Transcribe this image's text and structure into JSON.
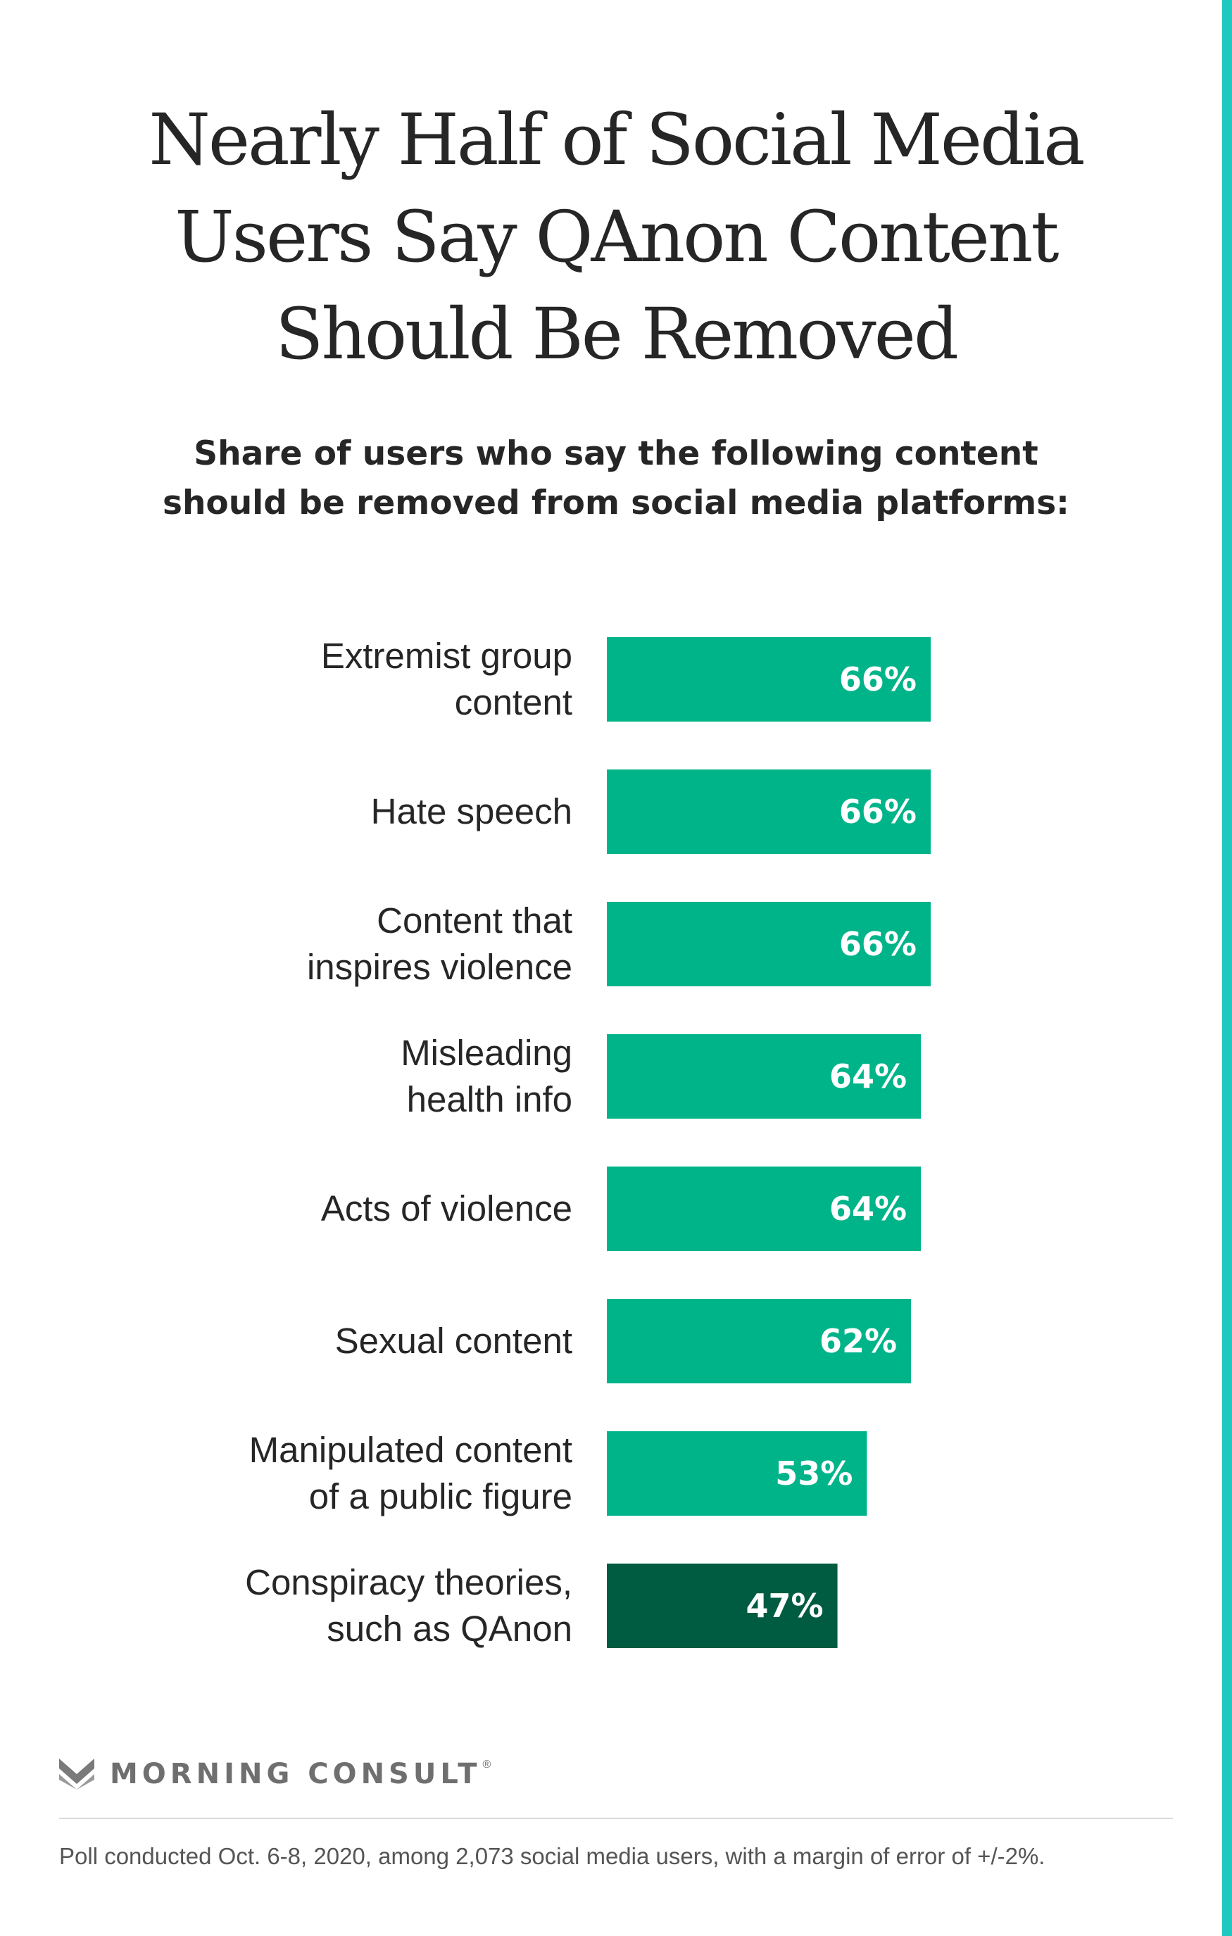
{
  "title_lines": [
    "Nearly Half of Social Media",
    "Users Say QAnon Content",
    "Should Be Removed"
  ],
  "subtitle_lines": [
    "Share of users who say the following content",
    "should be removed from social media platforms:"
  ],
  "colors": {
    "bar": "#00b48a",
    "highlight_bar": "#005c41",
    "accent_stripe": "#1fc9c0"
  },
  "chart_data": {
    "type": "bar",
    "orientation": "horizontal",
    "title": "Nearly Half of Social Media Users Say QAnon Content Should Be Removed",
    "subtitle": "Share of users who say the following content should be removed from social media platforms:",
    "categories": [
      [
        "Extremist group",
        "content"
      ],
      [
        "Hate speech"
      ],
      [
        "Content that",
        "inspires violence"
      ],
      [
        "Misleading",
        "health info"
      ],
      [
        "Acts of violence"
      ],
      [
        "Sexual content"
      ],
      [
        "Manipulated content",
        "of a public figure"
      ],
      [
        "Conspiracy theories,",
        "such as QAnon"
      ]
    ],
    "values": [
      66,
      66,
      66,
      64,
      64,
      62,
      53,
      47
    ],
    "value_labels": [
      "66%",
      "66%",
      "66%",
      "64%",
      "64%",
      "62%",
      "53%",
      "47%"
    ],
    "highlight_index": 7,
    "unit": "%",
    "axis_visible": false,
    "grid": false
  },
  "brand": {
    "name": "MORNING CONSULT",
    "reg": "®"
  },
  "footnote": "Poll conducted Oct. 6-8, 2020, among 2,073 social media users, with a margin of error of +/-2%."
}
